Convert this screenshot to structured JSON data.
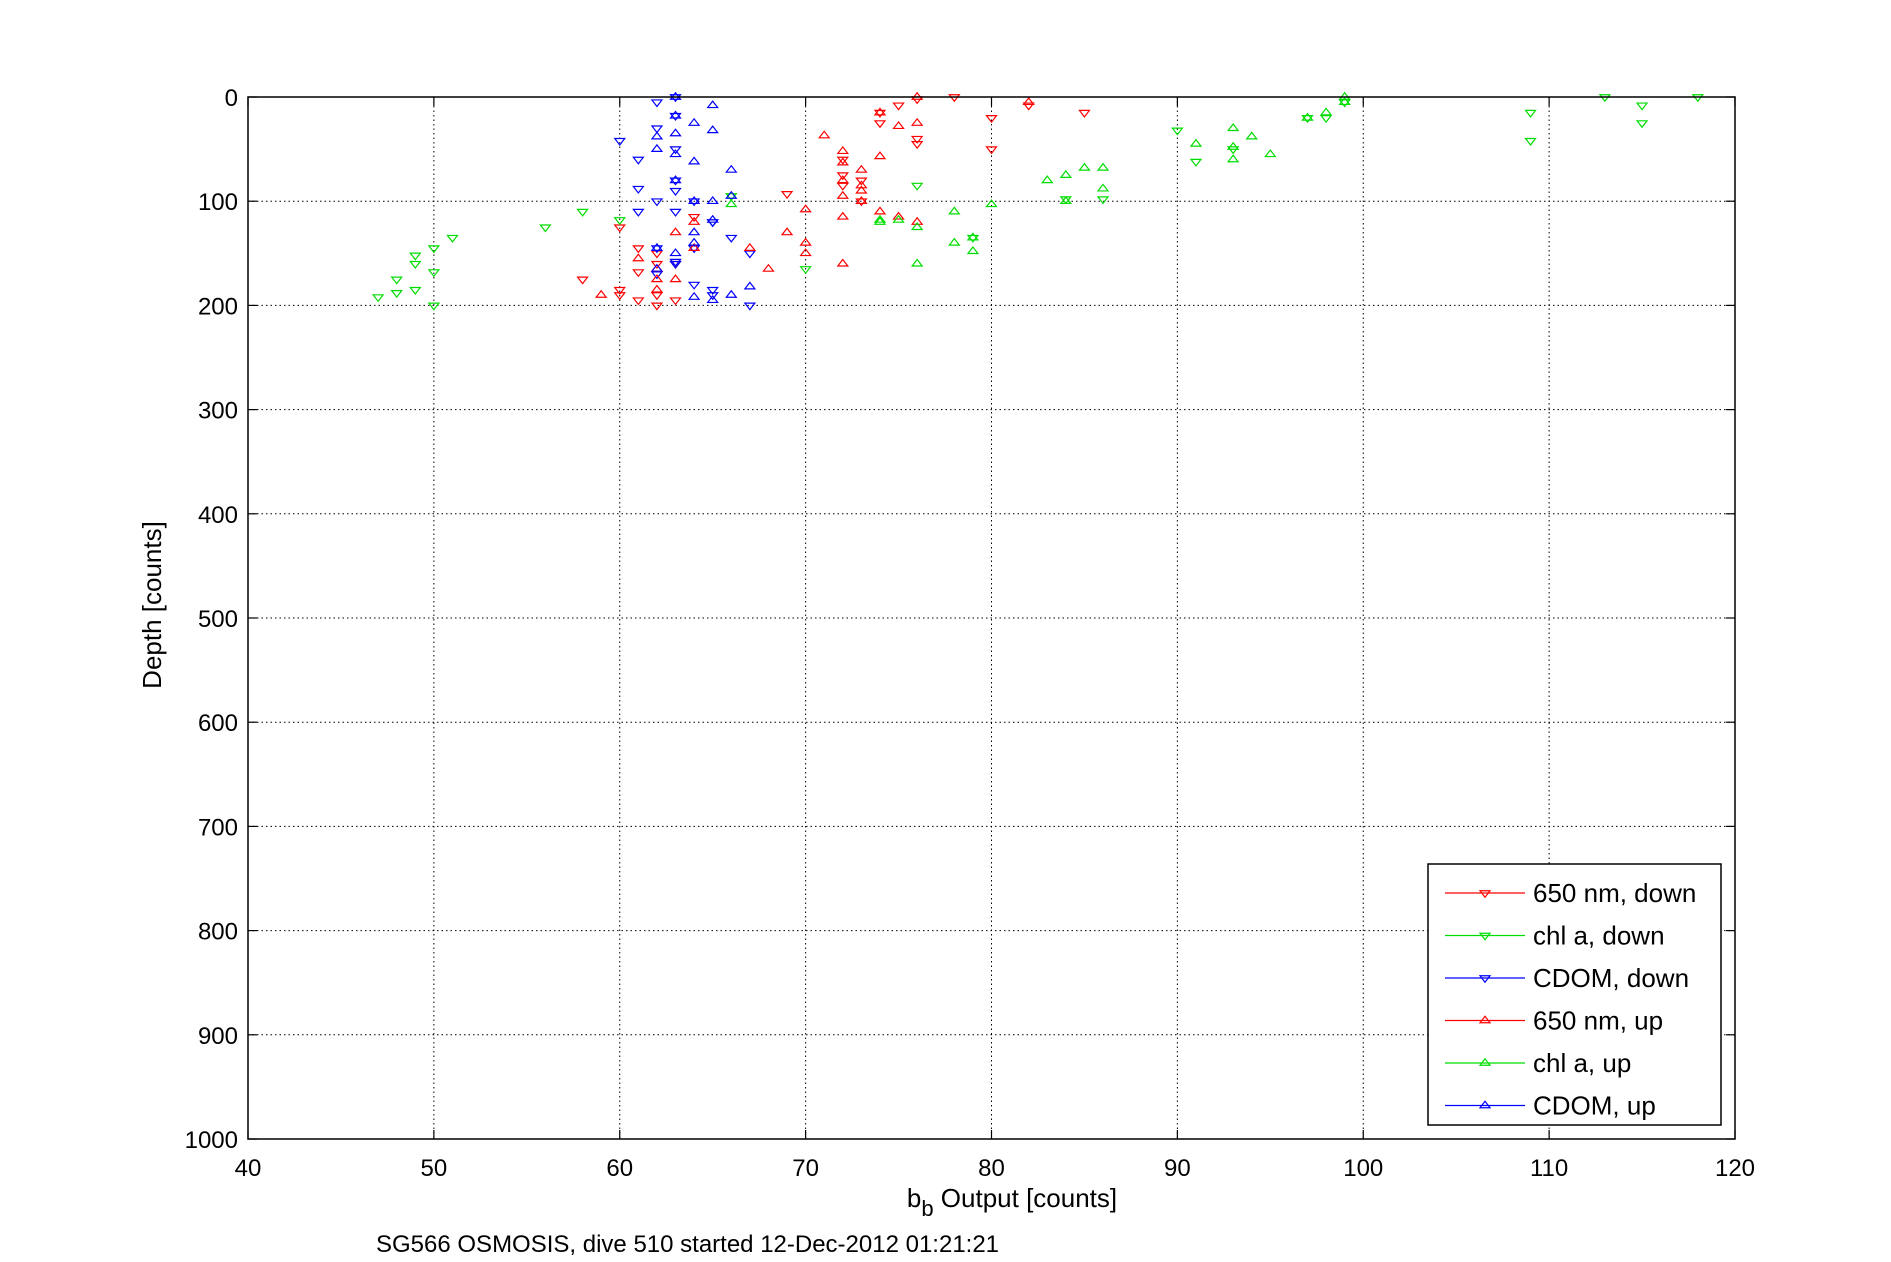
{
  "chart_data": {
    "type": "scatter",
    "xlabel_base": "b",
    "xlabel_sub": "b",
    "xlabel_rest": " Output [counts]",
    "ylabel": "Depth [counts]",
    "caption": "SG566 OSMOSIS, dive 510 started 12-Dec-2012 01:21:21",
    "xlim": [
      40,
      120
    ],
    "ylim": [
      0,
      1000
    ],
    "y_reversed": true,
    "grid": true,
    "legend_position": "bottom-right",
    "x_ticks": [
      "40",
      "50",
      "60",
      "70",
      "80",
      "90",
      "100",
      "110",
      "120"
    ],
    "y_ticks": [
      "0",
      "100",
      "200",
      "300",
      "400",
      "500",
      "600",
      "700",
      "800",
      "900",
      "1000"
    ],
    "series": [
      {
        "name": "650 nm, down",
        "color": "#ff0000",
        "marker": "triangle-down",
        "x": [
          78,
          76,
          75,
          74,
          82,
          85,
          80,
          76,
          76,
          74,
          72,
          80,
          72,
          73,
          72,
          73,
          69,
          61,
          63,
          60,
          60,
          63,
          61,
          62,
          62,
          58,
          61,
          60,
          62,
          62,
          64
        ],
        "y": [
          0,
          2,
          8,
          25,
          8,
          15,
          20,
          45,
          40,
          15,
          60,
          50,
          85,
          80,
          75,
          100,
          93,
          145,
          160,
          125,
          190,
          195,
          168,
          160,
          150,
          175,
          195,
          185,
          200,
          190,
          115
        ]
      },
      {
        "name": "chl a, down",
        "color": "#00dd00",
        "marker": "triangle-down",
        "x": [
          118,
          113,
          115,
          109,
          115,
          109,
          99,
          98,
          97,
          93,
          91,
          90,
          84,
          86,
          79,
          76,
          66,
          70,
          58,
          56,
          60,
          51,
          50,
          49,
          49,
          50,
          48,
          49,
          47,
          48,
          50
        ],
        "y": [
          0,
          0,
          8,
          15,
          25,
          42,
          5,
          20,
          20,
          50,
          62,
          32,
          98,
          98,
          135,
          85,
          95,
          165,
          110,
          125,
          118,
          135,
          145,
          152,
          160,
          168,
          175,
          185,
          192,
          188,
          200
        ]
      },
      {
        "name": "CDOM, down",
        "color": "#0000ff",
        "marker": "triangle-down",
        "x": [
          63,
          62,
          63,
          62,
          60,
          61,
          63,
          63,
          62,
          61,
          62,
          61,
          63,
          65,
          64,
          63,
          66,
          63,
          64,
          67,
          65,
          62,
          64,
          65,
          67,
          63,
          65
        ],
        "y": [
          0,
          5,
          18,
          30,
          42,
          60,
          80,
          50,
          100,
          88,
          145,
          110,
          110,
          120,
          100,
          160,
          135,
          158,
          145,
          150,
          185,
          170,
          180,
          190,
          200,
          90,
          120
        ]
      },
      {
        "name": "650 nm, up",
        "color": "#ff0000",
        "marker": "triangle-up",
        "x": [
          76,
          82,
          74,
          75,
          76,
          73,
          72,
          71,
          74,
          73,
          72,
          72,
          72,
          73,
          70,
          73,
          69,
          70,
          72,
          70,
          67,
          68,
          74,
          75,
          76,
          72,
          64,
          63,
          62,
          62,
          62,
          61,
          59,
          64,
          63
        ],
        "y": [
          0,
          5,
          15,
          28,
          25,
          70,
          52,
          37,
          57,
          90,
          63,
          80,
          95,
          85,
          108,
          100,
          130,
          150,
          115,
          140,
          145,
          165,
          110,
          115,
          120,
          160,
          120,
          130,
          165,
          175,
          185,
          155,
          190,
          145,
          175
        ]
      },
      {
        "name": "chl a, up",
        "color": "#00dd00",
        "marker": "triangle-up",
        "x": [
          99,
          99,
          98,
          97,
          93,
          93,
          93,
          94,
          95,
          91,
          86,
          85,
          84,
          83,
          84,
          86,
          80,
          79,
          78,
          78,
          79,
          76,
          76,
          75,
          74,
          74,
          66
        ],
        "y": [
          0,
          5,
          15,
          20,
          30,
          48,
          60,
          38,
          55,
          45,
          68,
          68,
          75,
          80,
          100,
          88,
          103,
          135,
          110,
          140,
          148,
          125,
          160,
          118,
          118,
          120,
          103
        ]
      },
      {
        "name": "CDOM, up",
        "color": "#0000ff",
        "marker": "triangle-up",
        "x": [
          63,
          65,
          63,
          64,
          63,
          65,
          62,
          63,
          64,
          62,
          66,
          63,
          65,
          64,
          66,
          63,
          65,
          64,
          62,
          67,
          66,
          64,
          65,
          62,
          64
        ],
        "y": [
          0,
          8,
          18,
          25,
          35,
          32,
          38,
          55,
          62,
          50,
          70,
          80,
          100,
          100,
          95,
          150,
          118,
          130,
          145,
          182,
          190,
          192,
          195,
          165,
          140
        ]
      }
    ]
  }
}
